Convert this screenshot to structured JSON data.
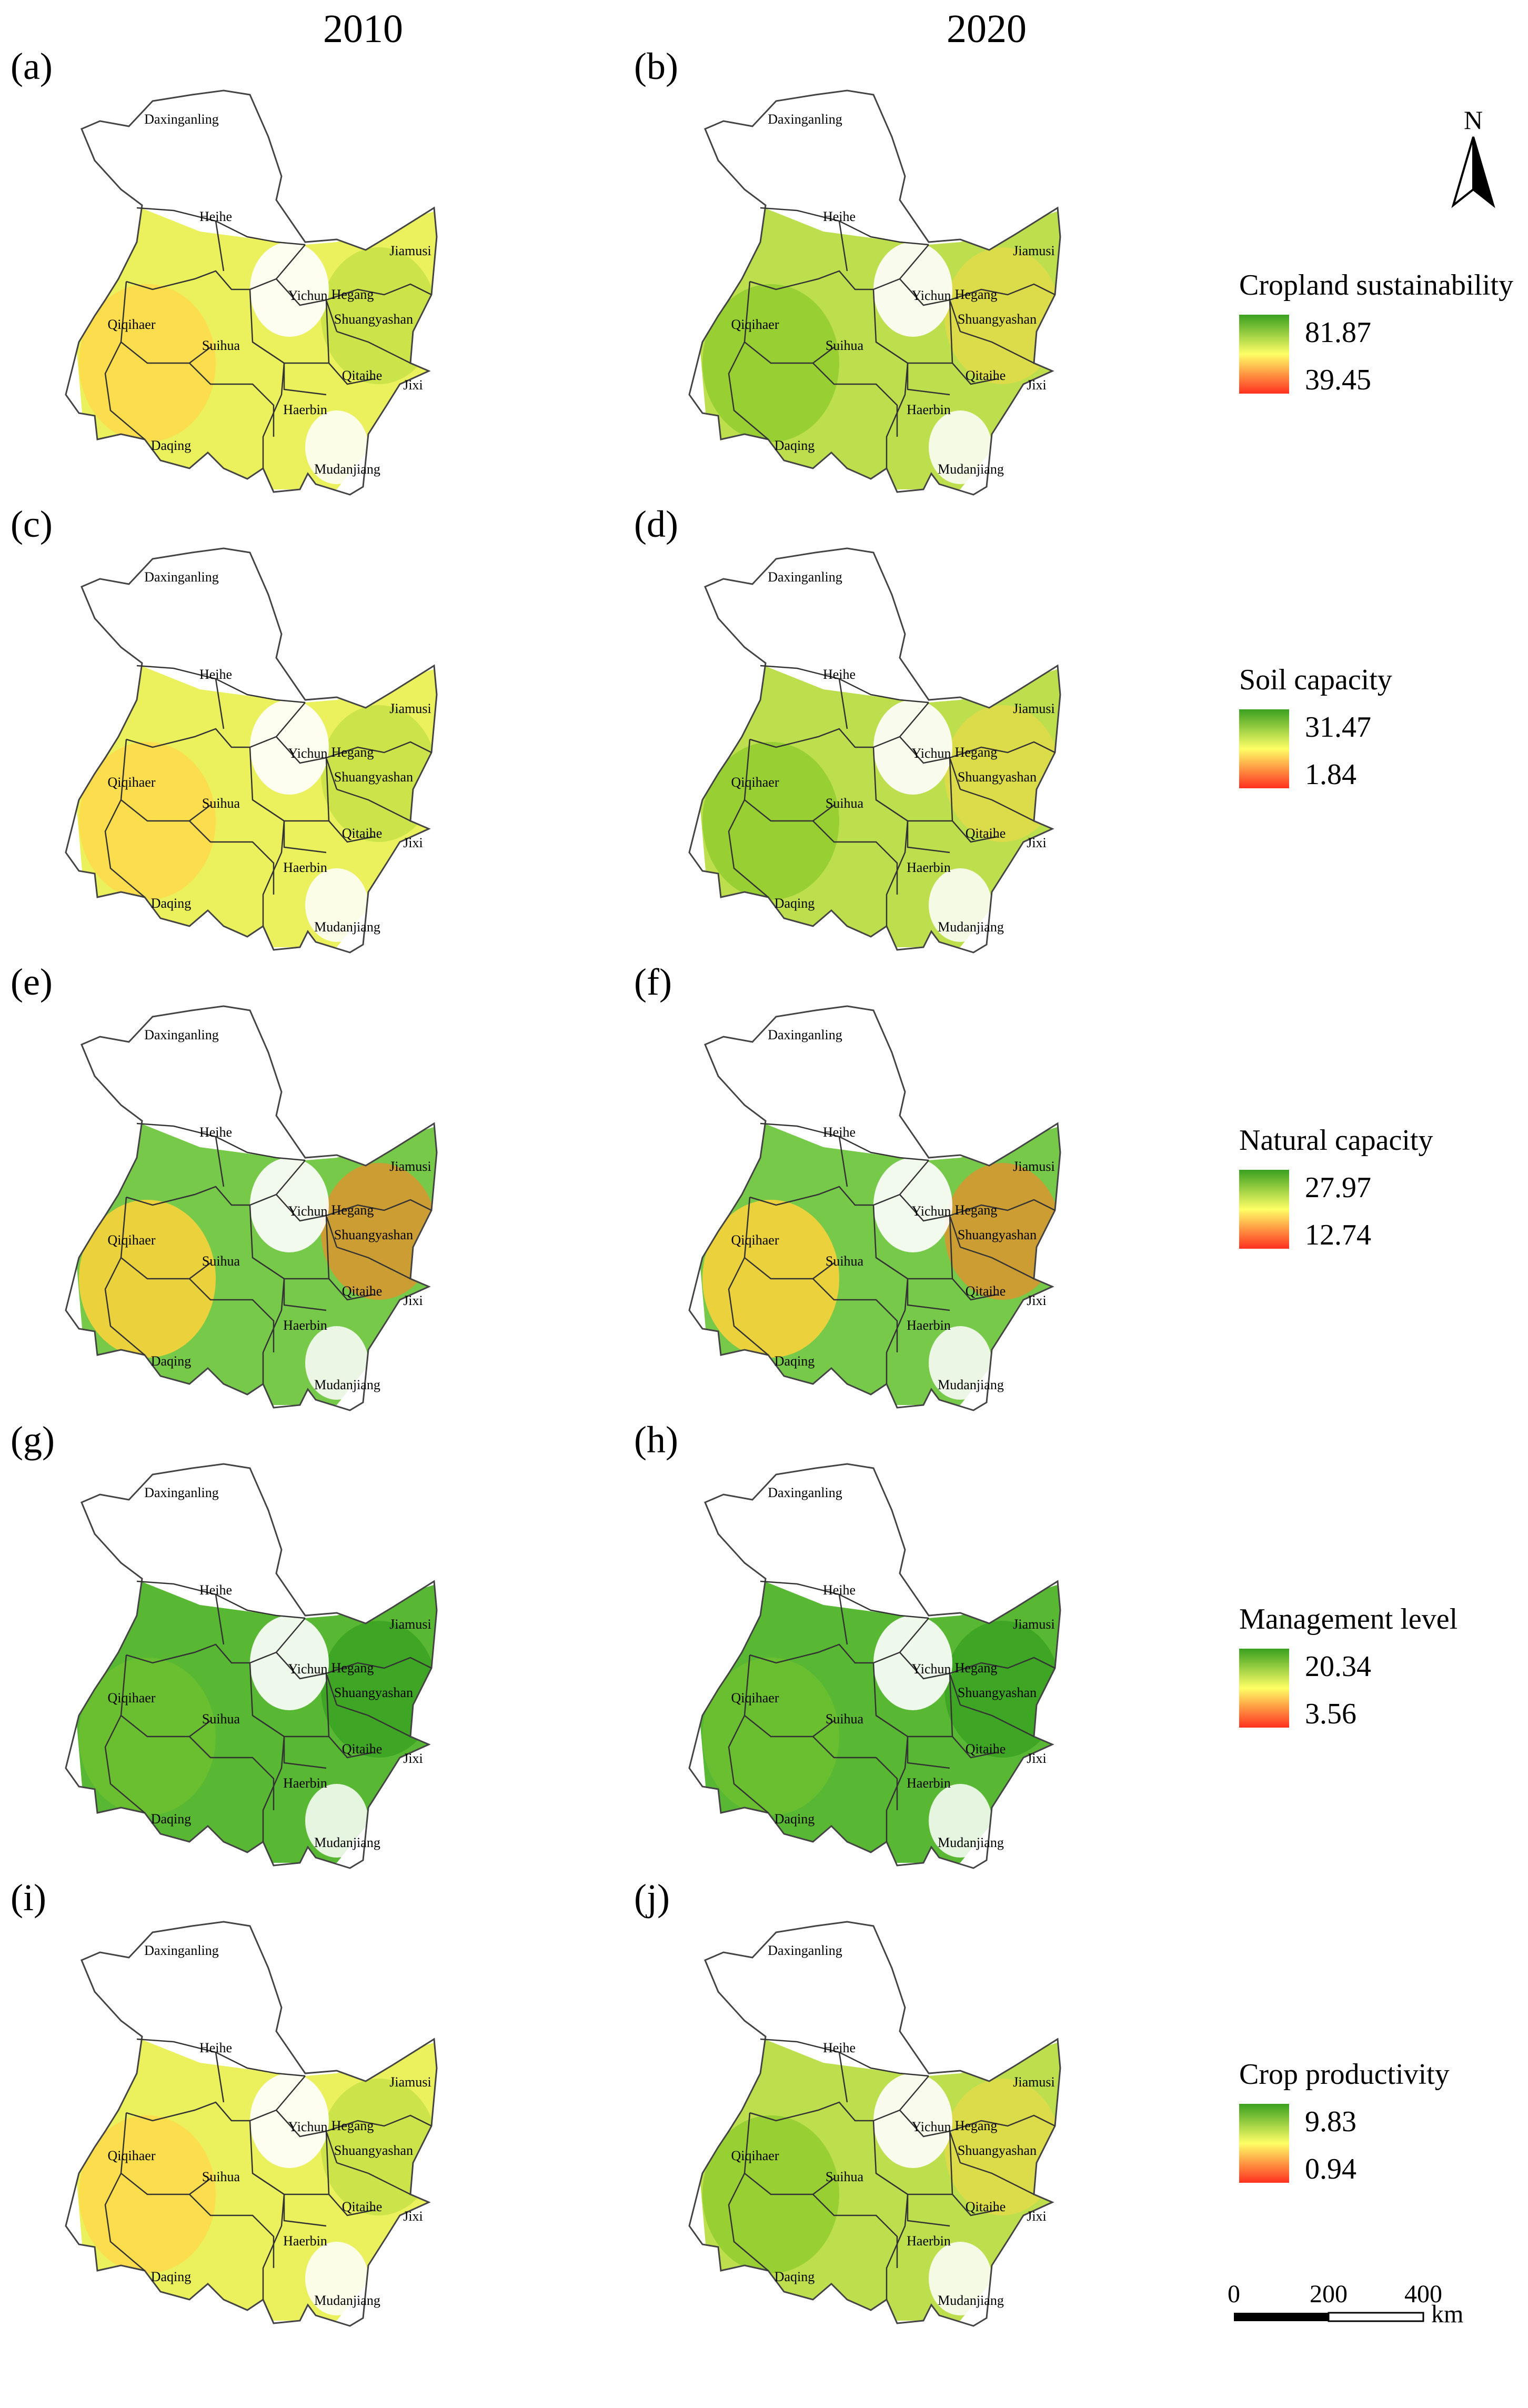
{
  "columns": [
    "2010",
    "2020"
  ],
  "panels": [
    {
      "label": "(a)",
      "indicator": "Cropland sustainability",
      "year": "2010",
      "tint": "yellow"
    },
    {
      "label": "(b)",
      "indicator": "Cropland sustainability",
      "year": "2020",
      "tint": "lightgreen"
    },
    {
      "label": "(c)",
      "indicator": "Soil capacity",
      "year": "2010",
      "tint": "yellow"
    },
    {
      "label": "(d)",
      "indicator": "Soil capacity",
      "year": "2020",
      "tint": "lightgreen"
    },
    {
      "label": "(e)",
      "indicator": "Natural capacity",
      "year": "2010",
      "tint": "greenorange"
    },
    {
      "label": "(f)",
      "indicator": "Natural capacity",
      "year": "2020",
      "tint": "greenorange"
    },
    {
      "label": "(g)",
      "indicator": "Management level",
      "year": "2010",
      "tint": "green"
    },
    {
      "label": "(h)",
      "indicator": "Management level",
      "year": "2020",
      "tint": "green"
    },
    {
      "label": "(i)",
      "indicator": "Crop productivity",
      "year": "2010",
      "tint": "yellow"
    },
    {
      "label": "(j)",
      "indicator": "Crop productivity",
      "year": "2020",
      "tint": "lightgreen"
    }
  ],
  "legends": [
    {
      "title": "Cropland sustainability",
      "max": "81.87",
      "min": "39.45"
    },
    {
      "title": "Soil capacity",
      "max": "31.47",
      "min": "1.84"
    },
    {
      "title": "Natural capacity",
      "max": "27.97",
      "min": "12.74"
    },
    {
      "title": "Management level",
      "max": "20.34",
      "min": "3.56"
    },
    {
      "title": "Crop productivity",
      "max": "9.83",
      "min": "0.94"
    }
  ],
  "region_names": [
    "Daxinganling",
    "Heihe",
    "Yichun",
    "Hegang",
    "Jiamusi",
    "Shuangyashan",
    "Qiqihaer",
    "Suihua",
    "Qitaihe",
    "Jixi",
    "Haerbin",
    "Daqing",
    "Mudanjiang"
  ],
  "north_arrow": "N",
  "scale_bar": {
    "ticks": [
      "0",
      "200",
      "400"
    ],
    "unit": "km"
  },
  "colors": {
    "high": "#3aa020",
    "mid": "#ffff66",
    "low": "#ff3020",
    "boundary": "#333333"
  }
}
